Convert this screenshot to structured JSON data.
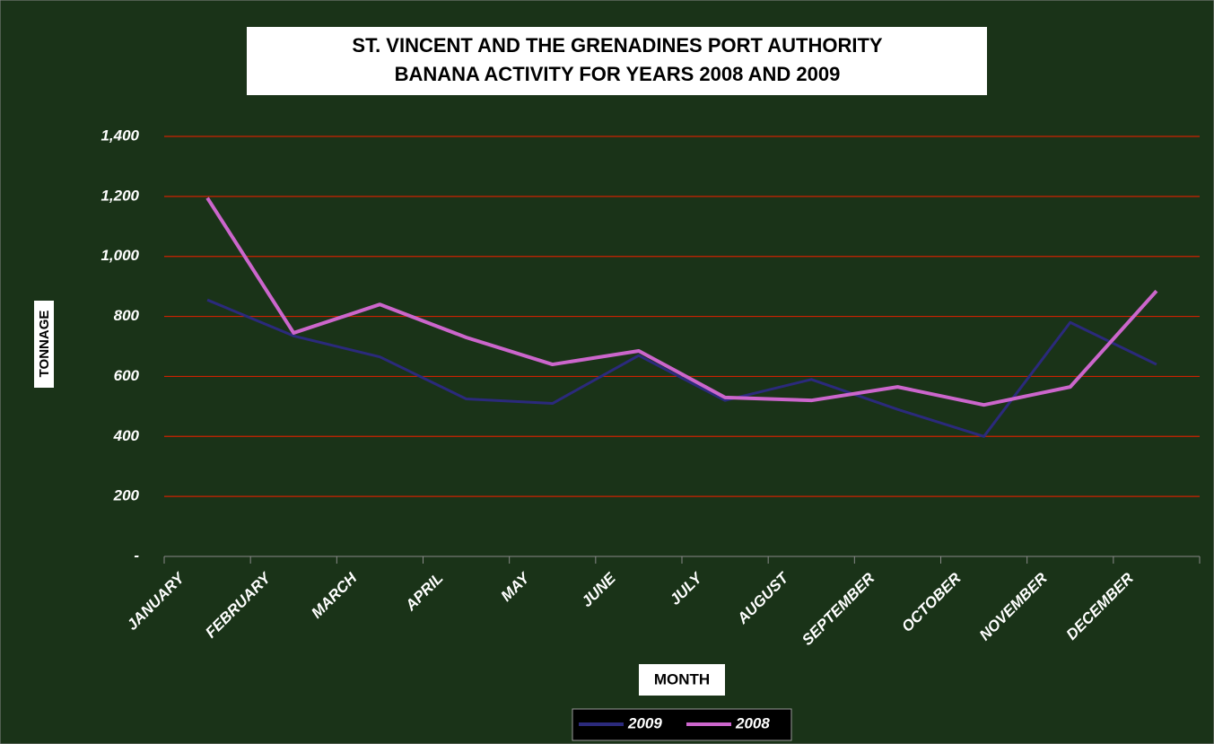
{
  "chart_data": {
    "type": "line",
    "title": "ST. VINCENT AND THE GRENADINES PORT AUTHORITY",
    "subtitle": "BANANA ACTIVITY FOR YEARS 2008 AND 2009",
    "y_label": "TONNAGE",
    "x_label": "MONTH",
    "categories": [
      "JANUARY",
      "FEBRUARY",
      "MARCH",
      "APRIL",
      "MAY",
      "JUNE",
      "JULY",
      "AUGUST",
      "SEPTEMBER",
      "OCTOBER",
      "NOVEMBER",
      "DECEMBER"
    ],
    "series": [
      {
        "name": "2009",
        "color": "#2b2a7c",
        "values": [
          855,
          735,
          665,
          525,
          510,
          670,
          520,
          590,
          490,
          400,
          780,
          640
        ]
      },
      {
        "name": "2008",
        "color": "#cc66cc",
        "values": [
          1195,
          745,
          840,
          730,
          640,
          685,
          530,
          520,
          565,
          505,
          565,
          885
        ]
      }
    ],
    "ylim": [
      0,
      1400
    ],
    "yticks": [
      {
        "value": 0,
        "label": "-"
      },
      200,
      400,
      600,
      800,
      {
        "value": 1000,
        "label": "1,000"
      },
      {
        "value": 1200,
        "label": "1,200"
      },
      {
        "value": 1400,
        "label": "1,400"
      }
    ],
    "grid": true,
    "legend": "bottom"
  }
}
